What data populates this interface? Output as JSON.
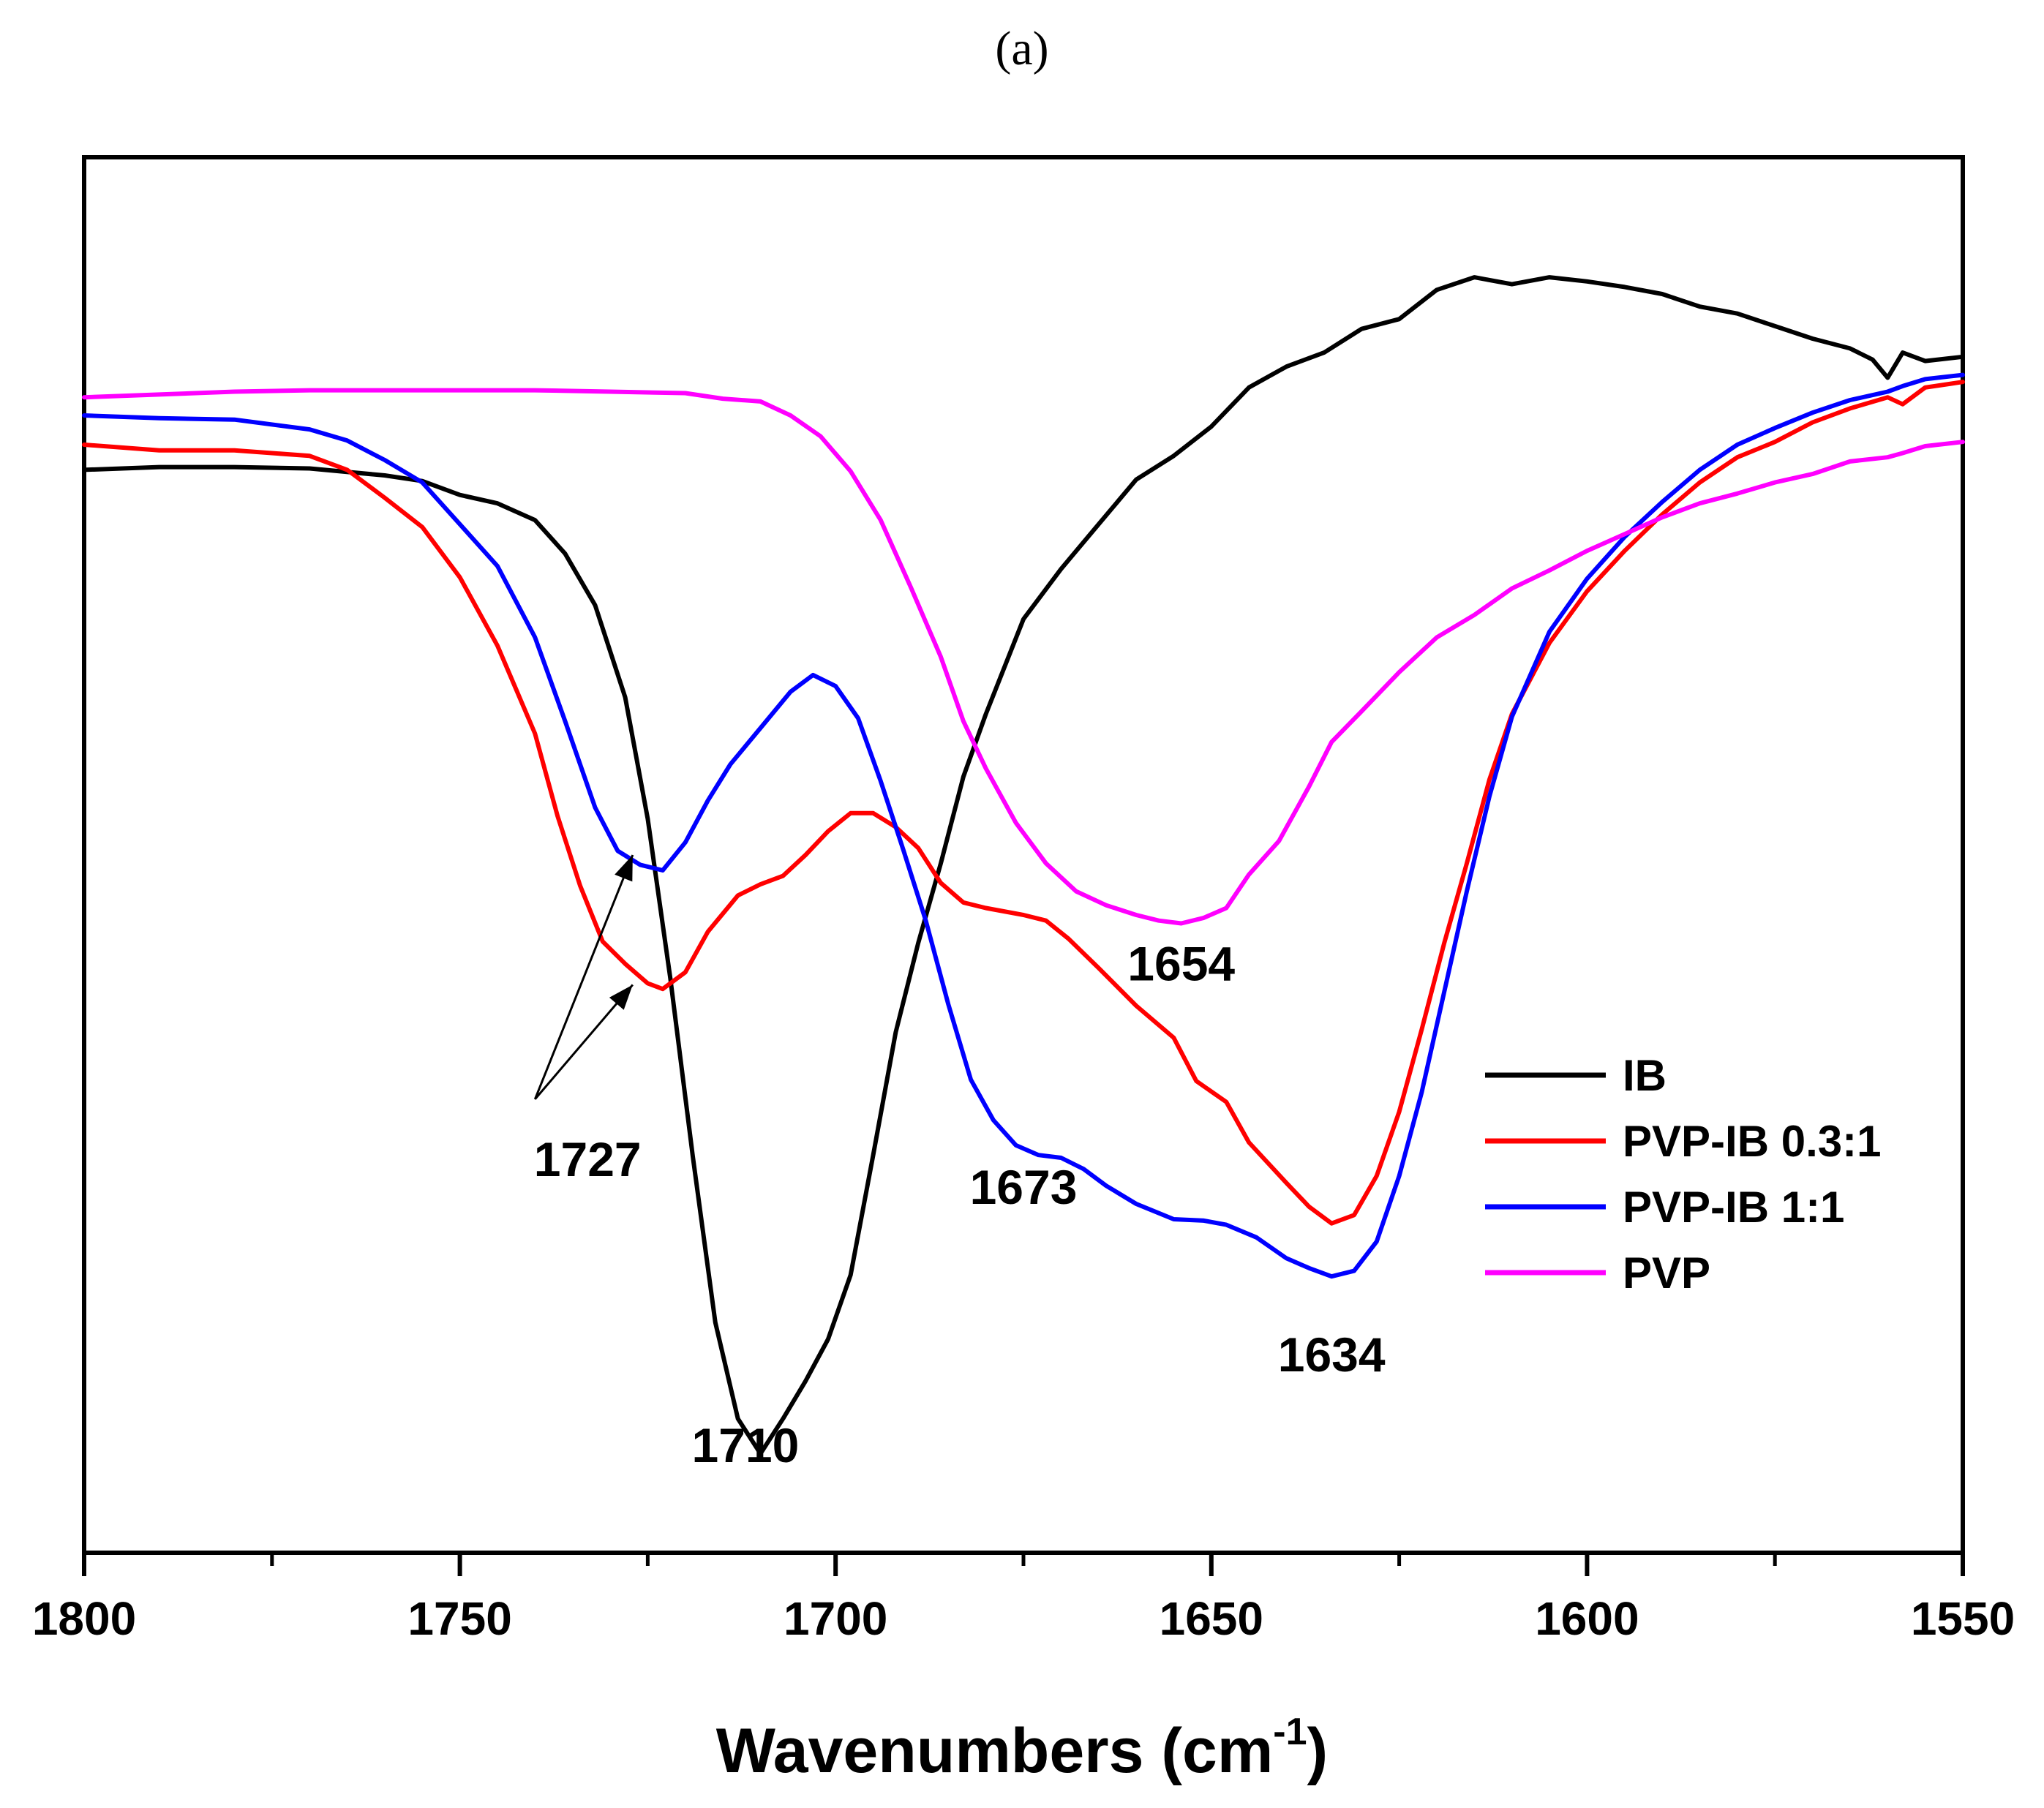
{
  "chart_data": {
    "type": "line",
    "panel_label": "(a)",
    "title": "",
    "xlabel": "Wavenumbers (cm",
    "xlabel_sup": "-1",
    "xlabel_end": ")",
    "ylabel": "",
    "xlim": [
      1800,
      1550
    ],
    "ylim": [
      0,
      1
    ],
    "x_ticks": [
      1800,
      1750,
      1700,
      1650,
      1600,
      1550
    ],
    "x_tick_labels": [
      "1800",
      "1750",
      "1700",
      "1650",
      "1600",
      "1550"
    ],
    "x_minor_ticks": [
      1775,
      1725,
      1675,
      1625,
      1575
    ],
    "series": [
      {
        "name": "IB",
        "color": "#000000",
        "points": [
          [
            1800,
            0.776
          ],
          [
            1790,
            0.778
          ],
          [
            1780,
            0.778
          ],
          [
            1770,
            0.777
          ],
          [
            1760,
            0.772
          ],
          [
            1755,
            0.768
          ],
          [
            1750,
            0.758
          ],
          [
            1745,
            0.752
          ],
          [
            1740,
            0.74
          ],
          [
            1736,
            0.716
          ],
          [
            1732,
            0.679
          ],
          [
            1728,
            0.613
          ],
          [
            1725,
            0.526
          ],
          [
            1722,
            0.412
          ],
          [
            1719,
            0.284
          ],
          [
            1716,
            0.165
          ],
          [
            1713,
            0.096
          ],
          [
            1710,
            0.071
          ],
          [
            1707,
            0.096
          ],
          [
            1704,
            0.123
          ],
          [
            1701,
            0.153
          ],
          [
            1698,
            0.199
          ],
          [
            1695,
            0.285
          ],
          [
            1692,
            0.373
          ],
          [
            1689,
            0.437
          ],
          [
            1686,
            0.494
          ],
          [
            1683,
            0.556
          ],
          [
            1680,
            0.601
          ],
          [
            1675,
            0.669
          ],
          [
            1670,
            0.705
          ],
          [
            1665,
            0.737
          ],
          [
            1660,
            0.769
          ],
          [
            1655,
            0.786
          ],
          [
            1650,
            0.807
          ],
          [
            1645,
            0.835
          ],
          [
            1640,
            0.85
          ],
          [
            1635,
            0.86
          ],
          [
            1630,
            0.877
          ],
          [
            1625,
            0.884
          ],
          [
            1620,
            0.905
          ],
          [
            1615,
            0.914
          ],
          [
            1610,
            0.909
          ],
          [
            1605,
            0.914
          ],
          [
            1600,
            0.911
          ],
          [
            1595,
            0.907
          ],
          [
            1590,
            0.902
          ],
          [
            1585,
            0.893
          ],
          [
            1580,
            0.888
          ],
          [
            1575,
            0.879
          ],
          [
            1570,
            0.87
          ],
          [
            1565,
            0.863
          ],
          [
            1562,
            0.855
          ],
          [
            1560,
            0.842
          ],
          [
            1558,
            0.86
          ],
          [
            1555,
            0.854
          ],
          [
            1550,
            0.857
          ]
        ]
      },
      {
        "name": "PVP-IB 0.3:1",
        "color": "#ff0000",
        "points": [
          [
            1800,
            0.794
          ],
          [
            1790,
            0.79
          ],
          [
            1780,
            0.79
          ],
          [
            1770,
            0.786
          ],
          [
            1765,
            0.776
          ],
          [
            1760,
            0.756
          ],
          [
            1755,
            0.735
          ],
          [
            1750,
            0.699
          ],
          [
            1745,
            0.65
          ],
          [
            1740,
            0.587
          ],
          [
            1737,
            0.528
          ],
          [
            1734,
            0.478
          ],
          [
            1731,
            0.438
          ],
          [
            1728,
            0.422
          ],
          [
            1725,
            0.408
          ],
          [
            1723,
            0.404
          ],
          [
            1720,
            0.416
          ],
          [
            1717,
            0.445
          ],
          [
            1713,
            0.471
          ],
          [
            1710,
            0.479
          ],
          [
            1707,
            0.485
          ],
          [
            1704,
            0.5
          ],
          [
            1701,
            0.517
          ],
          [
            1698,
            0.53
          ],
          [
            1695,
            0.53
          ],
          [
            1692,
            0.52
          ],
          [
            1689,
            0.505
          ],
          [
            1686,
            0.48
          ],
          [
            1683,
            0.466
          ],
          [
            1680,
            0.462
          ],
          [
            1675,
            0.457
          ],
          [
            1672,
            0.453
          ],
          [
            1669,
            0.44
          ],
          [
            1665,
            0.419
          ],
          [
            1660,
            0.392
          ],
          [
            1655,
            0.369
          ],
          [
            1652,
            0.338
          ],
          [
            1648,
            0.323
          ],
          [
            1645,
            0.294
          ],
          [
            1640,
            0.265
          ],
          [
            1637,
            0.248
          ],
          [
            1634,
            0.236
          ],
          [
            1631,
            0.242
          ],
          [
            1628,
            0.27
          ],
          [
            1625,
            0.316
          ],
          [
            1622,
            0.375
          ],
          [
            1619,
            0.437
          ],
          [
            1616,
            0.494
          ],
          [
            1613,
            0.554
          ],
          [
            1610,
            0.601
          ],
          [
            1605,
            0.652
          ],
          [
            1600,
            0.689
          ],
          [
            1595,
            0.718
          ],
          [
            1590,
            0.744
          ],
          [
            1585,
            0.767
          ],
          [
            1580,
            0.785
          ],
          [
            1575,
            0.796
          ],
          [
            1570,
            0.81
          ],
          [
            1565,
            0.82
          ],
          [
            1560,
            0.828
          ],
          [
            1558,
            0.823
          ],
          [
            1555,
            0.835
          ],
          [
            1550,
            0.839
          ]
        ]
      },
      {
        "name": "PVP-IB 1:1",
        "color": "#0000ff",
        "points": [
          [
            1800,
            0.815
          ],
          [
            1790,
            0.813
          ],
          [
            1780,
            0.812
          ],
          [
            1770,
            0.805
          ],
          [
            1765,
            0.797
          ],
          [
            1760,
            0.783
          ],
          [
            1755,
            0.767
          ],
          [
            1750,
            0.737
          ],
          [
            1745,
            0.707
          ],
          [
            1740,
            0.656
          ],
          [
            1736,
            0.596
          ],
          [
            1732,
            0.534
          ],
          [
            1729,
            0.503
          ],
          [
            1726,
            0.493
          ],
          [
            1723,
            0.489
          ],
          [
            1720,
            0.509
          ],
          [
            1717,
            0.539
          ],
          [
            1714,
            0.565
          ],
          [
            1710,
            0.591
          ],
          [
            1706,
            0.617
          ],
          [
            1703,
            0.629
          ],
          [
            1700,
            0.621
          ],
          [
            1697,
            0.598
          ],
          [
            1694,
            0.553
          ],
          [
            1691,
            0.504
          ],
          [
            1688,
            0.453
          ],
          [
            1685,
            0.393
          ],
          [
            1682,
            0.339
          ],
          [
            1679,
            0.31
          ],
          [
            1676,
            0.292
          ],
          [
            1673,
            0.285
          ],
          [
            1670,
            0.283
          ],
          [
            1667,
            0.275
          ],
          [
            1664,
            0.263
          ],
          [
            1660,
            0.25
          ],
          [
            1655,
            0.239
          ],
          [
            1651,
            0.238
          ],
          [
            1648,
            0.235
          ],
          [
            1644,
            0.226
          ],
          [
            1640,
            0.211
          ],
          [
            1637,
            0.204
          ],
          [
            1634,
            0.198
          ],
          [
            1631,
            0.202
          ],
          [
            1628,
            0.223
          ],
          [
            1625,
            0.27
          ],
          [
            1622,
            0.33
          ],
          [
            1619,
            0.402
          ],
          [
            1616,
            0.474
          ],
          [
            1613,
            0.542
          ],
          [
            1610,
            0.599
          ],
          [
            1605,
            0.66
          ],
          [
            1600,
            0.698
          ],
          [
            1595,
            0.728
          ],
          [
            1590,
            0.753
          ],
          [
            1585,
            0.776
          ],
          [
            1580,
            0.794
          ],
          [
            1575,
            0.806
          ],
          [
            1570,
            0.817
          ],
          [
            1565,
            0.826
          ],
          [
            1560,
            0.832
          ],
          [
            1558,
            0.836
          ],
          [
            1555,
            0.841
          ],
          [
            1550,
            0.844
          ]
        ]
      },
      {
        "name": "PVP",
        "color": "#ff00ff",
        "points": [
          [
            1800,
            0.828
          ],
          [
            1790,
            0.83
          ],
          [
            1780,
            0.832
          ],
          [
            1770,
            0.833
          ],
          [
            1760,
            0.833
          ],
          [
            1750,
            0.833
          ],
          [
            1740,
            0.833
          ],
          [
            1730,
            0.832
          ],
          [
            1720,
            0.831
          ],
          [
            1715,
            0.827
          ],
          [
            1710,
            0.825
          ],
          [
            1706,
            0.815
          ],
          [
            1702,
            0.8
          ],
          [
            1698,
            0.775
          ],
          [
            1694,
            0.74
          ],
          [
            1690,
            0.692
          ],
          [
            1686,
            0.642
          ],
          [
            1683,
            0.596
          ],
          [
            1680,
            0.562
          ],
          [
            1676,
            0.523
          ],
          [
            1672,
            0.494
          ],
          [
            1668,
            0.474
          ],
          [
            1664,
            0.464
          ],
          [
            1660,
            0.457
          ],
          [
            1657,
            0.453
          ],
          [
            1654,
            0.451
          ],
          [
            1651,
            0.455
          ],
          [
            1648,
            0.462
          ],
          [
            1645,
            0.486
          ],
          [
            1641,
            0.51
          ],
          [
            1637,
            0.549
          ],
          [
            1634,
            0.581
          ],
          [
            1630,
            0.603
          ],
          [
            1625,
            0.631
          ],
          [
            1620,
            0.656
          ],
          [
            1615,
            0.672
          ],
          [
            1610,
            0.691
          ],
          [
            1605,
            0.704
          ],
          [
            1600,
            0.718
          ],
          [
            1595,
            0.73
          ],
          [
            1590,
            0.742
          ],
          [
            1585,
            0.752
          ],
          [
            1580,
            0.759
          ],
          [
            1575,
            0.767
          ],
          [
            1570,
            0.773
          ],
          [
            1565,
            0.782
          ],
          [
            1560,
            0.785
          ],
          [
            1558,
            0.788
          ],
          [
            1555,
            0.793
          ],
          [
            1550,
            0.796
          ]
        ]
      }
    ],
    "annotations": [
      {
        "text": "1654",
        "x": 1654,
        "y": 0.41
      },
      {
        "text": "1727",
        "x": 1733,
        "y": 0.27
      },
      {
        "text": "1673",
        "x": 1675,
        "y": 0.25
      },
      {
        "text": "1634",
        "x": 1634,
        "y": 0.13
      },
      {
        "text": "1710",
        "x": 1712,
        "y": 0.065
      }
    ],
    "arrows": [
      {
        "from": [
          1740,
          0.325
        ],
        "to": [
          1727,
          0.5
        ]
      },
      {
        "from": [
          1740,
          0.325
        ],
        "to": [
          1727,
          0.407
        ]
      }
    ],
    "legend": {
      "placement": "lower-right",
      "entries": [
        "IB",
        "PVP-IB 0.3:1",
        "PVP-IB 1:1",
        "PVP"
      ]
    }
  }
}
